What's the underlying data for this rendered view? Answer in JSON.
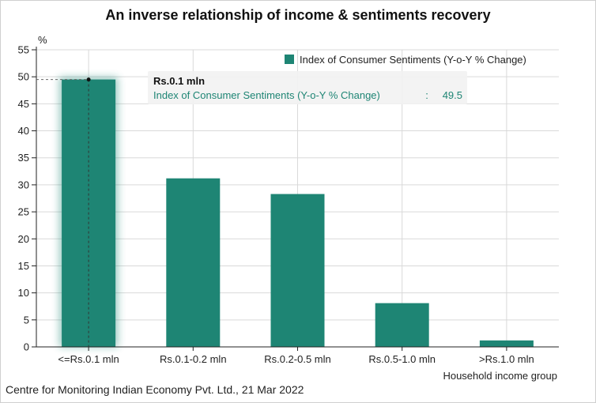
{
  "title": "An inverse relationship of income & sentiments recovery",
  "source": "Centre for Monitoring Indian Economy Pvt. Ltd., 21 Mar 2022",
  "colors": {
    "bar": "#1e8574",
    "grid": "#d9d9d9",
    "axis": "#222222"
  },
  "chart_data": {
    "type": "bar",
    "categories": [
      "<=Rs.0.1 mln",
      "Rs.0.1-0.2 mln",
      "Rs.0.2-0.5 mln",
      "Rs.0.5-1.0 mln",
      ">Rs.1.0 mln"
    ],
    "series": [
      {
        "name": "Index of Consumer Sentiments (Y-o-Y % Change)",
        "values": [
          49.5,
          31.2,
          28.3,
          8.1,
          1.2
        ]
      }
    ],
    "xlabel": "Household income group",
    "ylabel": "%",
    "ylim": [
      0,
      55
    ],
    "yticks": [
      0,
      5,
      10,
      15,
      20,
      25,
      30,
      35,
      40,
      45,
      50,
      55
    ],
    "grid": true,
    "legend": "top-right",
    "tooltip": {
      "category": "Rs.0.1 mln",
      "series": "Index of Consumer Sentiments (Y-o-Y % Change)",
      "separator": ":",
      "value": "49.5"
    }
  }
}
